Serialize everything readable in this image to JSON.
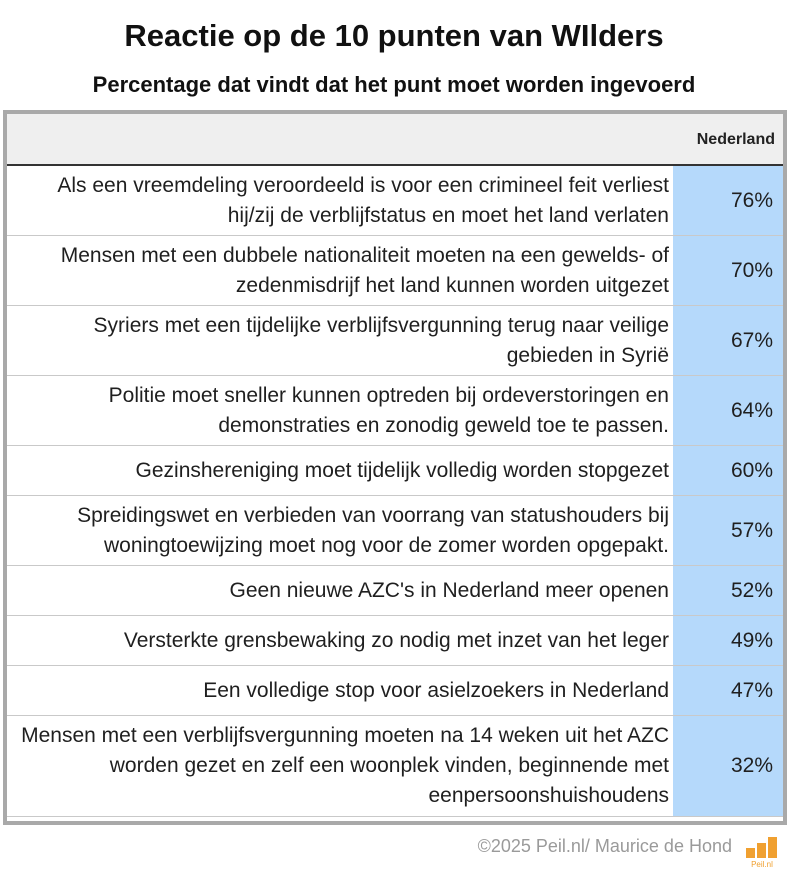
{
  "title": "Reactie op de 10 punten van WIlders",
  "subtitle": "Percentage dat vindt dat het punt moet worden ingevoerd",
  "colors": {
    "cell_bg": "#b5d9fb",
    "header_bg": "#efefef",
    "frame": "#a9a9a9",
    "logo": "#f0a030"
  },
  "chart_data": {
    "type": "table",
    "column_header": "Nederland",
    "rows": [
      {
        "label": "Als een vreemdeling veroordeeld is voor een crimineel feit verliest hij/zij de verblijfstatus en moet het land verlaten",
        "value": "76%"
      },
      {
        "label": "Mensen met een dubbele nationaliteit moeten na een gewelds- of zedenmisdrijf het land kunnen worden uitgezet",
        "value": "70%"
      },
      {
        "label": "Syriers met een tijdelijke verblijfsvergunning terug naar veilige gebieden in Syrië",
        "value": "67%"
      },
      {
        "label": "Politie moet sneller kunnen optreden bij ordeverstoringen en demonstraties en zonodig geweld toe te passen.",
        "value": "64%"
      },
      {
        "label": "Gezinshereniging moet tijdelijk volledig worden stopgezet",
        "value": "60%"
      },
      {
        "label": "Spreidingswet en verbieden van voorrang van statushouders bij woningtoewijzing moet nog voor de zomer worden opgepakt.",
        "value": "57%"
      },
      {
        "label": "Geen nieuwe AZC's in Nederland meer openen",
        "value": "52%"
      },
      {
        "label": "Versterkte grensbewaking zo nodig met inzet van het leger",
        "value": "49%"
      },
      {
        "label": "Een volledige stop voor asielzoekers in Nederland",
        "value": "47%"
      },
      {
        "label": "Mensen met een verblijfsvergunning moeten na 14 weken uit het AZC worden gezet en zelf een woonplek vinden, beginnende met eenpersoonshuishoudens",
        "value": "32%"
      }
    ]
  },
  "footer": {
    "credit": "©2025 Peil.nl/ Maurice de Hond",
    "logo_text": "Peil.nl"
  }
}
